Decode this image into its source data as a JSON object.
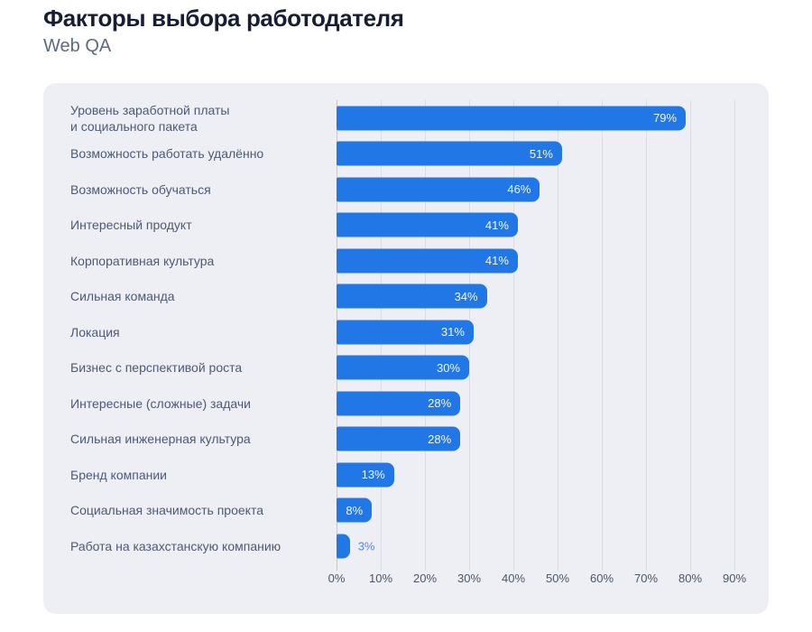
{
  "page": {
    "title": "Факторы выбора работодателя",
    "subtitle": "Web QA"
  },
  "chart_data": {
    "type": "bar",
    "orientation": "horizontal",
    "title": "Факторы выбора работодателя",
    "subtitle": "Web QA",
    "categories": [
      "Уровень заработной платы\nи социального пакета",
      "Возможность работать удалённо",
      "Возможность обучаться",
      "Интересный продукт",
      "Корпоративная культура",
      "Сильная команда",
      "Локация",
      "Бизнес с перспективой роста",
      "Интересные (сложные) задачи",
      "Сильная инженерная культура",
      "Бренд компании",
      "Социальная значимость проекта",
      "Работа на казахстанскую компанию"
    ],
    "values": [
      79,
      51,
      46,
      41,
      41,
      34,
      31,
      30,
      28,
      28,
      13,
      8,
      3
    ],
    "value_labels": [
      "79%",
      "51%",
      "46%",
      "41%",
      "41%",
      "34%",
      "31%",
      "30%",
      "28%",
      "28%",
      "13%",
      "8%",
      "3%"
    ],
    "value_suffix": "%",
    "xlabel": "",
    "ylabel": "",
    "axis": {
      "min": 0,
      "max": 90,
      "step": 10,
      "tick_labels": [
        "0%",
        "10%",
        "20%",
        "30%",
        "40%",
        "50%",
        "60%",
        "70%",
        "80%",
        "90%"
      ]
    },
    "grid": true,
    "legend": false,
    "colors": {
      "bar": "#2277e6",
      "value_label_inside": "#f2f6fd",
      "value_label_outside": "#548ae6",
      "card_background": "#edeff4",
      "gridline": "#dadde3",
      "axis_line": "#c4c9d2",
      "category_label": "#4d5a76",
      "tick_label": "#4d5668",
      "title": "#181d33",
      "subtitle": "#5e6a82"
    }
  }
}
